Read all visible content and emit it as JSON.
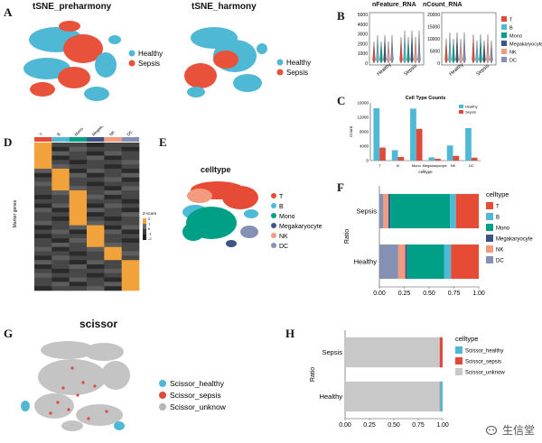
{
  "panels": {
    "A": "A",
    "B": "B",
    "C": "C",
    "D": "D",
    "E": "E",
    "F": "F",
    "G": "G",
    "H": "H"
  },
  "tsne": {
    "left_title": "tSNE_preharmony",
    "right_title": "tSNE_harmony",
    "legend": [
      {
        "label": "Healthy",
        "color": "#4fb8d4"
      },
      {
        "label": "Sepsis",
        "color": "#e8523a"
      }
    ]
  },
  "violin": {
    "left_title": "nFeature_RNA",
    "right_title": "nCount_RNA",
    "left_yticks": [
      "5000",
      "4000",
      "3000",
      "2000",
      "1000",
      "0"
    ],
    "right_yticks": [
      "20000",
      "15000",
      "10000",
      "5000",
      "0"
    ],
    "xlabels": [
      "Healthy",
      "Sepsis"
    ],
    "legend": [
      {
        "label": "T",
        "color": "#e64b35"
      },
      {
        "label": "B",
        "color": "#4dbbd5"
      },
      {
        "label": "Mono",
        "color": "#00a087"
      },
      {
        "label": "Megakaryocyte",
        "color": "#3c5488"
      },
      {
        "label": "NK",
        "color": "#f39b7f"
      },
      {
        "label": "DC",
        "color": "#8491b4"
      }
    ]
  },
  "chart_data": [
    {
      "type": "bar",
      "title": "Cell Type Counts",
      "xlabel": "celltype",
      "ylabel": "Count",
      "categories": [
        "T",
        "B",
        "Mono",
        "Megakaryocyte",
        "NK",
        "DC"
      ],
      "ylim": [
        0,
        16000
      ],
      "yticks": [
        "0",
        "4000",
        "8000",
        "12000",
        "16000"
      ],
      "series": [
        {
          "name": "Healthy",
          "color": "#4fb8d4",
          "values": [
            14500,
            2900,
            14400,
            900,
            4200,
            9000
          ]
        },
        {
          "name": "Sepsis",
          "color": "#e04a3a",
          "values": [
            3600,
            1000,
            8800,
            500,
            1300,
            800
          ]
        }
      ],
      "legend_placement": "top-right"
    },
    {
      "type": "bar",
      "stacked": true,
      "orientation": "horizontal",
      "ylabel": "Ratio",
      "categories": [
        "Sepsis",
        "Healthy"
      ],
      "xlim": [
        0,
        1
      ],
      "xticks": [
        "0.00",
        "0.25",
        "0.50",
        "0.75",
        "1.00"
      ],
      "legend_title": "celltype",
      "series": [
        {
          "name": "DC",
          "color": "#8491b4",
          "values": [
            0.04,
            0.19
          ]
        },
        {
          "name": "NK",
          "color": "#f39b7f",
          "values": [
            0.05,
            0.07
          ]
        },
        {
          "name": "Megakaryocyte",
          "color": "#3c5488",
          "values": [
            0.02,
            0.02
          ]
        },
        {
          "name": "Mono",
          "color": "#00a087",
          "values": [
            0.6,
            0.37
          ]
        },
        {
          "name": "B",
          "color": "#4dbbd5",
          "values": [
            0.06,
            0.07
          ]
        },
        {
          "name": "T",
          "color": "#e64b35",
          "values": [
            0.23,
            0.28
          ]
        }
      ]
    },
    {
      "type": "bar",
      "stacked": true,
      "orientation": "horizontal",
      "ylabel": "Ratio",
      "categories": [
        "Sepsis",
        "Healthy"
      ],
      "xlim": [
        0,
        1
      ],
      "xticks": [
        "0.00",
        "0.25",
        "0.50",
        "0.75",
        "1.00"
      ],
      "legend_title": "celltype",
      "series": [
        {
          "name": "Scissor_unknow",
          "color": "#c8c8c8",
          "values": [
            0.97,
            0.97
          ]
        },
        {
          "name": "Scissor_sepsis",
          "color": "#e04a3a",
          "values": [
            0.03,
            0.005
          ]
        },
        {
          "name": "Scissor_healthy",
          "color": "#4fb8d4",
          "values": [
            0.0,
            0.025
          ]
        }
      ]
    }
  ],
  "heatmap": {
    "top_labels": [
      "T",
      "B",
      "Mono",
      "Megakaryocyte",
      "NK",
      "DC"
    ],
    "top_colors": [
      "#e64b35",
      "#4dbbd5",
      "#00a087",
      "#3c5488",
      "#f39b7f",
      "#8491b4"
    ],
    "ylabel": "Marker genes",
    "legend_title": "Z-score",
    "legend_ticks": [
      "2",
      "1",
      "0",
      "-1",
      "-2"
    ]
  },
  "umap_e": {
    "title": "celltype",
    "legend": [
      {
        "label": "T",
        "color": "#e64b35"
      },
      {
        "label": "B",
        "color": "#4dbbd5"
      },
      {
        "label": "Mono",
        "color": "#00a087"
      },
      {
        "label": "Megakaryocyte",
        "color": "#3c5488"
      },
      {
        "label": "NK",
        "color": "#f39b7f"
      },
      {
        "label": "DC",
        "color": "#8491b4"
      }
    ]
  },
  "scissor": {
    "title": "scissor",
    "legend": [
      {
        "label": "Scissor_healthy",
        "color": "#4fb8d4"
      },
      {
        "label": "Scissor_sepsis",
        "color": "#e04a3a"
      },
      {
        "label": "Scissor_unknow",
        "color": "#b5b5b5"
      }
    ]
  },
  "watermark": "生信堂"
}
